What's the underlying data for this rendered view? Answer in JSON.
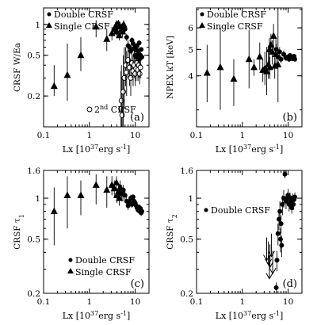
{
  "chart_data": [
    {
      "type": "scatter",
      "panel_label": "(a)",
      "xlabel_main": "Lx [10",
      "xlabel_exp": "37",
      "xlabel_unit": "erg s",
      "xlabel_exp2": "-1",
      "xlabel_end": "]",
      "ylabel": "CRSF W/Ea",
      "xscale": "log",
      "yscale": "log",
      "xlim": [
        0.1,
        20
      ],
      "ylim": [
        0.1,
        1.45
      ],
      "xticks": [
        {
          "v": 0.1,
          "label": "0.1"
        },
        {
          "v": 1,
          "label": "1"
        },
        {
          "v": 10,
          "label": "10"
        }
      ],
      "yticks": [
        {
          "v": 0.2,
          "label": "0.2"
        },
        {
          "v": 0.5,
          "label": "0.5"
        },
        {
          "v": 1,
          "label": "1"
        }
      ],
      "legend": {
        "double": "Double CRSF",
        "single": "Single CRSF"
      },
      "note_main": "2",
      "note_sup": "nd",
      "note_tail": " CRSF",
      "series": [
        {
          "name": "Double CRSF",
          "marker": "circle",
          "points": [
            [
              5.5,
              0.98,
              0.08
            ],
            [
              6.0,
              0.9,
              0.07
            ],
            [
              6.5,
              0.75,
              0.06
            ],
            [
              7.0,
              0.62,
              0.05
            ],
            [
              7.5,
              0.6,
              0.04
            ],
            [
              8.0,
              0.55,
              0.04
            ],
            [
              8.5,
              0.7,
              0.05
            ],
            [
              9.0,
              0.65,
              0.05
            ],
            [
              9.5,
              0.58,
              0.04
            ],
            [
              10.0,
              0.5,
              0.04
            ],
            [
              10.5,
              0.48,
              0.04
            ],
            [
              11.0,
              0.62,
              0.04
            ],
            [
              11.5,
              0.55,
              0.04
            ],
            [
              12.0,
              0.52,
              0.03
            ],
            [
              12.5,
              0.46,
              0.03
            ],
            [
              13.0,
              0.5,
              0.03
            ],
            [
              13.5,
              0.57,
              0.03
            ],
            [
              14.0,
              0.48,
              0.03
            ],
            [
              12.2,
              0.66,
              0.04
            ],
            [
              10.8,
              0.56,
              0.04
            ],
            [
              9.8,
              0.6,
              0.04
            ]
          ]
        },
        {
          "name": "Single CRSF",
          "marker": "triangle",
          "points": [
            [
              0.17,
              0.25,
              0.2,
              0.4
            ],
            [
              0.33,
              0.32,
              0.18,
              0.65
            ],
            [
              0.65,
              0.5,
              0.35,
              0.75
            ],
            [
              1.4,
              0.95,
              0.75,
              1.1
            ],
            [
              2.4,
              0.72,
              0.55,
              0.9
            ],
            [
              3.1,
              0.82,
              0.7,
              0.95
            ],
            [
              3.5,
              0.9,
              0.8,
              1.0
            ],
            [
              3.9,
              1.0,
              0.9,
              1.1
            ],
            [
              4.3,
              1.02,
              0.92,
              1.1
            ],
            [
              4.7,
              0.95,
              0.85,
              1.05
            ],
            [
              5.1,
              0.9,
              0.8,
              1.0
            ],
            [
              5.6,
              1.0,
              0.9,
              1.1
            ],
            [
              4.0,
              0.85,
              0.75,
              0.95
            ],
            [
              4.5,
              0.78,
              0.7,
              0.88
            ],
            [
              3.7,
              0.95,
              0.86,
              1.05
            ],
            [
              5.3,
              0.85,
              0.75,
              0.95
            ]
          ]
        },
        {
          "name": "2nd CRSF",
          "marker": "open-circle",
          "points": [
            [
              4.9,
              0.15,
              0.1,
              0.35
            ],
            [
              5.0,
              0.18,
              0.1,
              0.4
            ],
            [
              5.2,
              0.13,
              0.1,
              0.3
            ],
            [
              5.5,
              0.22,
              0.1,
              0.5
            ],
            [
              5.8,
              0.3,
              0.15,
              0.6
            ],
            [
              6.2,
              0.4,
              0.25,
              0.6
            ],
            [
              6.5,
              0.34,
              0.2,
              0.55
            ],
            [
              7.0,
              0.45,
              0.3,
              0.7
            ],
            [
              7.5,
              0.38,
              0.25,
              0.55
            ],
            [
              8.0,
              0.3,
              0.2,
              0.45
            ],
            [
              8.5,
              0.42,
              0.3,
              0.6
            ],
            [
              9.0,
              0.35,
              0.25,
              0.5
            ],
            [
              9.5,
              0.4,
              0.3,
              0.55
            ],
            [
              10.0,
              0.33,
              0.25,
              0.45
            ],
            [
              10.5,
              0.37,
              0.28,
              0.5
            ],
            [
              11.0,
              0.42,
              0.32,
              0.55
            ],
            [
              11.5,
              0.36,
              0.28,
              0.47
            ],
            [
              12.0,
              0.4,
              0.3,
              0.52
            ],
            [
              12.5,
              0.33,
              0.26,
              0.43
            ],
            [
              13.0,
              0.38,
              0.3,
              0.48
            ]
          ]
        }
      ]
    },
    {
      "type": "scatter",
      "panel_label": "(b)",
      "xlabel_main": "Lx [10",
      "xlabel_exp": "37",
      "xlabel_unit": "erg s",
      "xlabel_exp2": "-1",
      "xlabel_end": "]",
      "ylabel": "NPEX kT [keV]",
      "xscale": "log",
      "yscale": "log",
      "xlim": [
        0.1,
        20
      ],
      "ylim": [
        2.6,
        7.1
      ],
      "xticks": [
        {
          "v": 0.1,
          "label": "0.1"
        },
        {
          "v": 1,
          "label": "1"
        },
        {
          "v": 10,
          "label": "10"
        }
      ],
      "yticks": [
        {
          "v": 4,
          "label": "4"
        },
        {
          "v": 5,
          "label": "5"
        },
        {
          "v": 6,
          "label": "6"
        }
      ],
      "legend": {
        "double": "Double CRSF",
        "single": "Single CRSF"
      },
      "series": [
        {
          "name": "Double CRSF",
          "marker": "circle",
          "points": [
            [
              5.5,
              5.0,
              0.25
            ],
            [
              6.0,
              4.7,
              0.2
            ],
            [
              6.5,
              4.9,
              0.2
            ],
            [
              7.0,
              4.6,
              0.15
            ],
            [
              8.0,
              4.8,
              0.15
            ],
            [
              9.0,
              4.65,
              0.12
            ],
            [
              10.0,
              4.7,
              0.1
            ],
            [
              10.5,
              4.6,
              0.1
            ],
            [
              11.0,
              4.75,
              0.1
            ],
            [
              11.5,
              4.65,
              0.1
            ],
            [
              12.0,
              4.7,
              0.08
            ],
            [
              12.5,
              4.62,
              0.08
            ],
            [
              13.0,
              4.68,
              0.08
            ],
            [
              13.5,
              4.72,
              0.08
            ],
            [
              14.0,
              4.6,
              0.08
            ]
          ]
        },
        {
          "name": "Single CRSF",
          "marker": "triangle",
          "points": [
            [
              0.17,
              4.1,
              3.2,
              5.2
            ],
            [
              0.33,
              4.3,
              3.0,
              6.0
            ],
            [
              0.65,
              3.9,
              3.1,
              4.6
            ],
            [
              1.4,
              4.6,
              3.6,
              5.9
            ],
            [
              1.8,
              4.3,
              4.0,
              4.6
            ],
            [
              2.4,
              4.7,
              4.2,
              5.3
            ],
            [
              2.8,
              4.2,
              3.8,
              4.6
            ],
            [
              3.1,
              4.25,
              3.7,
              4.9
            ],
            [
              3.4,
              4.15,
              3.4,
              5.1
            ],
            [
              3.7,
              4.4,
              3.9,
              5.0
            ],
            [
              3.9,
              5.0,
              4.5,
              5.5
            ],
            [
              4.2,
              5.2,
              4.8,
              5.7
            ],
            [
              4.5,
              4.9,
              4.4,
              5.4
            ],
            [
              4.8,
              5.6,
              5.0,
              6.2
            ],
            [
              5.1,
              4.35,
              3.9,
              4.8
            ],
            [
              5.4,
              4.8,
              4.3,
              5.5
            ],
            [
              4.0,
              4.3,
              3.9,
              4.7
            ],
            [
              6.0,
              4.4,
              3.2,
              7.0
            ]
          ]
        }
      ]
    },
    {
      "type": "scatter",
      "panel_label": "(c)",
      "xlabel_main": "Lx [10",
      "xlabel_exp": "37",
      "xlabel_unit": "erg s",
      "xlabel_exp2": "-1",
      "xlabel_end": "]",
      "ylabel_main": "CRSF τ",
      "ylabel_sub": "1",
      "xscale": "log",
      "yscale": "log",
      "xlim": [
        0.1,
        20
      ],
      "ylim": [
        0.2,
        1.6
      ],
      "xticks": [
        {
          "v": 0.1,
          "label": "0.1"
        },
        {
          "v": 1,
          "label": "1"
        },
        {
          "v": 10,
          "label": "10"
        }
      ],
      "yticks": [
        {
          "v": 0.2,
          "label": "0.2"
        },
        {
          "v": 0.5,
          "label": "0.5"
        },
        {
          "v": 1,
          "label": "1"
        },
        {
          "v": 1.6,
          "label": "1.6"
        }
      ],
      "legend": {
        "double": "Double CRSF",
        "single": "Single CRSF"
      },
      "series": [
        {
          "name": "Double CRSF",
          "marker": "circle",
          "points": [
            [
              5.5,
              1.15,
              0.1
            ],
            [
              6.0,
              1.05,
              0.08
            ],
            [
              6.5,
              0.95,
              0.07
            ],
            [
              7.0,
              0.88,
              0.06
            ],
            [
              7.5,
              0.95,
              0.06
            ],
            [
              8.0,
              1.0,
              0.06
            ],
            [
              8.5,
              0.9,
              0.05
            ],
            [
              9.0,
              1.02,
              0.05
            ],
            [
              9.5,
              0.95,
              0.05
            ],
            [
              10.0,
              0.92,
              0.05
            ],
            [
              10.5,
              0.88,
              0.05
            ],
            [
              11.0,
              0.85,
              0.04
            ],
            [
              11.5,
              0.82,
              0.04
            ],
            [
              12.0,
              0.86,
              0.04
            ],
            [
              12.5,
              0.8,
              0.04
            ],
            [
              13.0,
              0.84,
              0.04
            ],
            [
              13.5,
              0.78,
              0.04
            ],
            [
              14.0,
              0.8,
              0.04
            ]
          ]
        },
        {
          "name": "Single CRSF",
          "marker": "triangle",
          "points": [
            [
              0.17,
              0.8,
              0.45,
              1.2
            ],
            [
              0.33,
              1.05,
              0.6,
              1.45
            ],
            [
              0.65,
              1.05,
              0.75,
              1.35
            ],
            [
              1.4,
              1.25,
              0.9,
              1.5
            ],
            [
              2.4,
              1.15,
              0.85,
              1.45
            ],
            [
              3.1,
              1.25,
              1.05,
              1.45
            ],
            [
              3.5,
              1.18,
              1.0,
              1.35
            ],
            [
              3.9,
              1.3,
              1.15,
              1.45
            ],
            [
              4.3,
              1.12,
              0.98,
              1.25
            ],
            [
              4.7,
              1.2,
              1.05,
              1.35
            ],
            [
              5.1,
              1.1,
              0.95,
              1.25
            ],
            [
              5.4,
              1.08,
              0.95,
              1.2
            ],
            [
              4.0,
              1.05,
              0.92,
              1.18
            ],
            [
              4.5,
              1.0,
              0.88,
              1.12
            ]
          ]
        }
      ]
    },
    {
      "type": "scatter",
      "panel_label": "(d)",
      "xlabel_main": "Lx [10",
      "xlabel_exp": "37",
      "xlabel_unit": "erg s",
      "xlabel_exp2": "-1",
      "xlabel_end": "]",
      "ylabel_main": "CRSF τ",
      "ylabel_sub": "2",
      "xscale": "log",
      "yscale": "log",
      "xlim": [
        0.1,
        20
      ],
      "ylim": [
        0.2,
        1.6
      ],
      "xticks": [
        {
          "v": 0.1,
          "label": "0.1"
        },
        {
          "v": 1,
          "label": "1"
        },
        {
          "v": 10,
          "label": "10"
        }
      ],
      "yticks": [
        {
          "v": 0.2,
          "label": "0.2"
        },
        {
          "v": 0.5,
          "label": "0.5"
        },
        {
          "v": 1,
          "label": "1"
        },
        {
          "v": 1.6,
          "label": "1.6"
        }
      ],
      "legend": {
        "double": "Double CRSF"
      },
      "series": [
        {
          "name": "Double CRSF",
          "marker": "circle",
          "points": [
            [
              5.5,
              0.22,
              0.02
            ],
            [
              5.7,
              0.35,
              0.06
            ],
            [
              6.0,
              0.55,
              0.1
            ],
            [
              6.3,
              0.7,
              0.12
            ],
            [
              6.6,
              0.8,
              0.15
            ],
            [
              7.0,
              0.65,
              0.1
            ],
            [
              7.5,
              0.9,
              0.15
            ],
            [
              8.0,
              1.0,
              0.15
            ],
            [
              8.5,
              1.5,
              0.1
            ],
            [
              9.0,
              0.95,
              0.12
            ],
            [
              9.5,
              1.0,
              0.1
            ],
            [
              10.0,
              1.05,
              0.12
            ],
            [
              10.5,
              0.9,
              0.1
            ],
            [
              11.0,
              1.0,
              0.1
            ],
            [
              11.5,
              0.95,
              0.1
            ],
            [
              12.0,
              0.85,
              0.08
            ],
            [
              12.5,
              1.0,
              0.08
            ],
            [
              13.0,
              0.9,
              0.08
            ],
            [
              13.5,
              0.98,
              0.08
            ],
            [
              14.0,
              1.02,
              0.08
            ],
            [
              6.8,
              0.5,
              0.1
            ],
            [
              7.2,
              0.45,
              0.08
            ]
          ]
        },
        {
          "name": "Upper limits",
          "marker": "arrow-down",
          "points": [
            [
              3.4,
              0.45
            ],
            [
              3.7,
              0.42
            ],
            [
              4.0,
              0.4
            ],
            [
              4.3,
              0.48
            ],
            [
              4.6,
              0.36
            ],
            [
              3.9,
              0.33
            ]
          ]
        }
      ]
    }
  ]
}
